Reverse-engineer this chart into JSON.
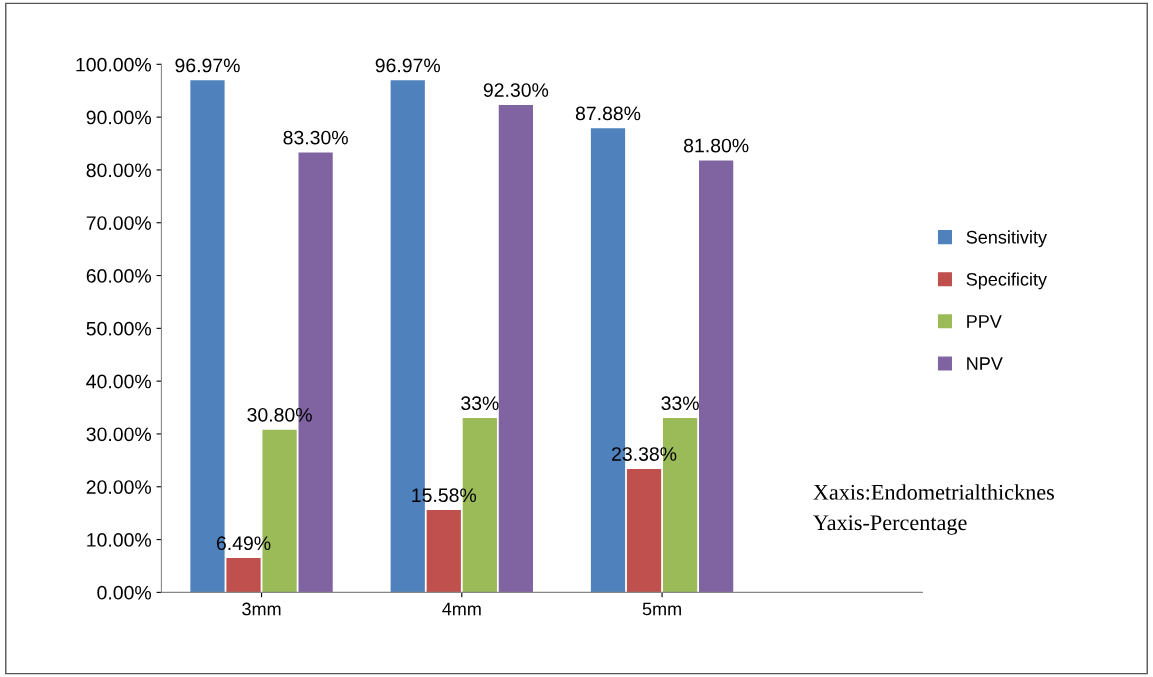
{
  "chart_data": {
    "type": "bar",
    "categories": [
      "3mm",
      "4mm",
      "5mm"
    ],
    "series": [
      {
        "name": "Sensitivity",
        "color": "#4f81bd",
        "values": [
          96.97,
          96.97,
          87.88
        ],
        "value_labels": [
          "96.97%",
          "96.97%",
          "87.88%"
        ]
      },
      {
        "name": "Specificity",
        "color": "#c0504d",
        "values": [
          6.49,
          15.58,
          23.38
        ],
        "value_labels": [
          "6.49%",
          "15.58%",
          "23.38%"
        ]
      },
      {
        "name": "PPV",
        "color": "#9bbb59",
        "values": [
          30.8,
          33,
          33
        ],
        "value_labels": [
          "30.80%",
          "33%",
          "33%"
        ]
      },
      {
        "name": "NPV",
        "color": "#8064a2",
        "values": [
          83.3,
          92.3,
          81.8
        ],
        "value_labels": [
          "83.30%",
          "92.30%",
          "81.80%"
        ]
      }
    ],
    "ylim": [
      0,
      100
    ],
    "yticks": [
      {
        "value": 0,
        "label": "0.00%"
      },
      {
        "value": 10,
        "label": "10.00%"
      },
      {
        "value": 20,
        "label": "20.00%"
      },
      {
        "value": 30,
        "label": "30.00%"
      },
      {
        "value": 40,
        "label": "40.00%"
      },
      {
        "value": 50,
        "label": "50.00%"
      },
      {
        "value": 60,
        "label": "60.00%"
      },
      {
        "value": 70,
        "label": "70.00%"
      },
      {
        "value": 80,
        "label": "80.00%"
      },
      {
        "value": 90,
        "label": "90.00%"
      },
      {
        "value": 100,
        "label": "100.00%"
      }
    ],
    "grid": false,
    "legend": "right",
    "annotations": [
      "Xaxis:Endometrialthicknes",
      "Yaxis-Percentage"
    ]
  }
}
